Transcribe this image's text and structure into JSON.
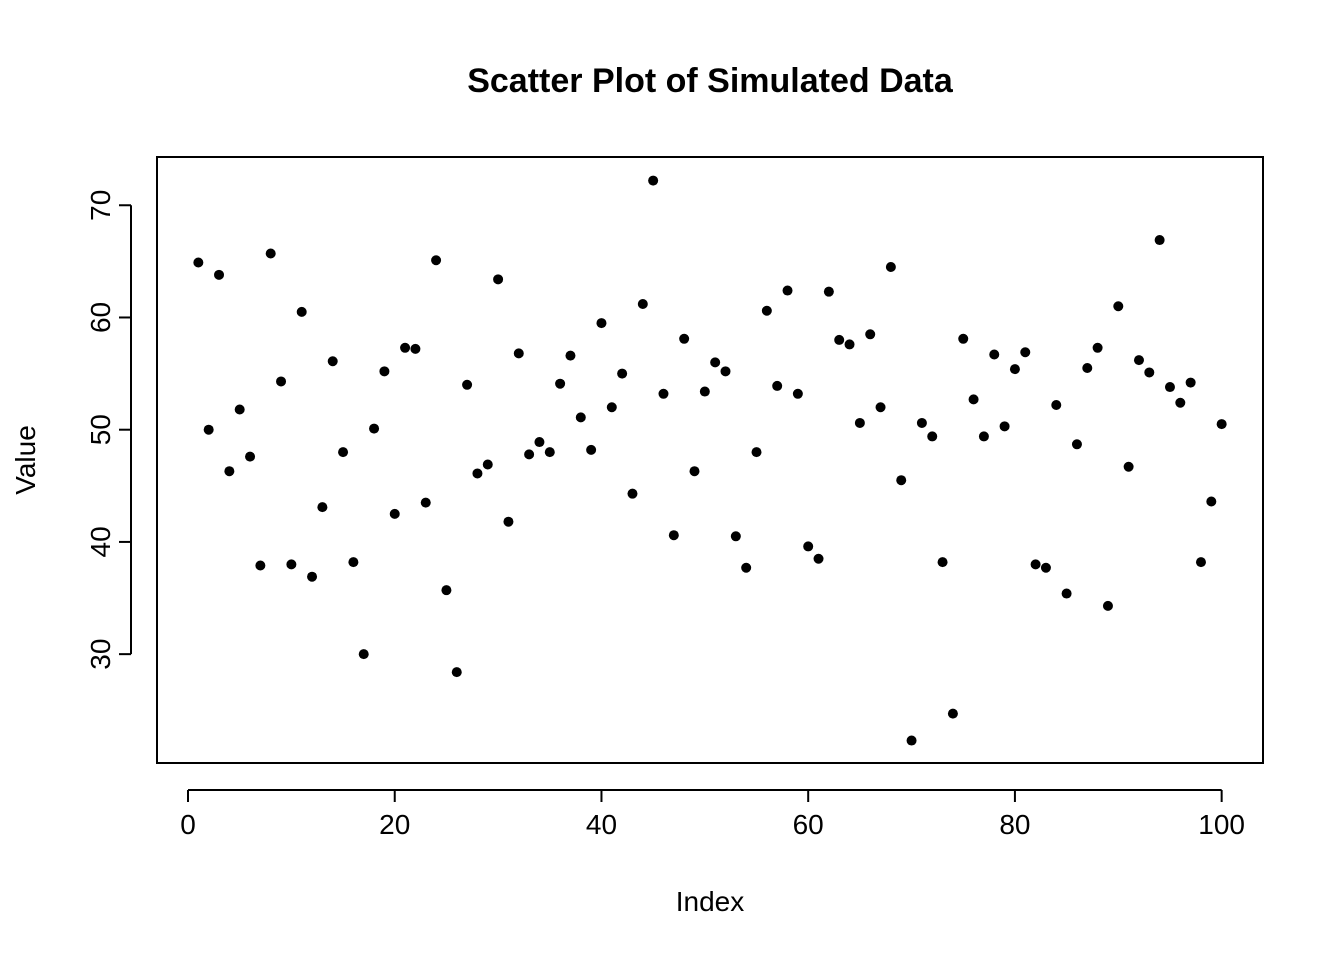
{
  "chart_data": {
    "type": "scatter",
    "title": "Scatter Plot of Simulated Data",
    "xlabel": "Index",
    "ylabel": "Value",
    "xlim": [
      -3,
      104
    ],
    "ylim": [
      20.3,
      74.3
    ],
    "xticks": [
      0,
      20,
      40,
      60,
      80,
      100
    ],
    "yticks": [
      30,
      40,
      50,
      60,
      70
    ],
    "xtick_labels": [
      "0",
      "20",
      "40",
      "60",
      "80",
      "100"
    ],
    "ytick_labels": [
      "30",
      "40",
      "50",
      "60",
      "70"
    ],
    "grid": false,
    "legend": "none",
    "point_color": "#000000",
    "x": [
      1,
      2,
      3,
      4,
      5,
      6,
      7,
      8,
      9,
      10,
      11,
      12,
      13,
      14,
      15,
      16,
      17,
      18,
      19,
      20,
      21,
      22,
      23,
      24,
      25,
      26,
      27,
      28,
      29,
      30,
      31,
      32,
      33,
      34,
      35,
      36,
      37,
      38,
      39,
      40,
      41,
      42,
      43,
      44,
      45,
      46,
      47,
      48,
      49,
      50,
      51,
      52,
      53,
      54,
      55,
      56,
      57,
      58,
      59,
      60,
      61,
      62,
      63,
      64,
      65,
      66,
      67,
      68,
      69,
      70,
      71,
      72,
      73,
      74,
      75,
      76,
      77,
      78,
      79,
      80,
      81,
      82,
      83,
      84,
      85,
      86,
      87,
      88,
      89,
      90,
      91,
      92,
      93,
      94,
      95,
      96,
      97,
      98,
      99,
      100
    ],
    "y": [
      64.9,
      50.0,
      63.8,
      46.3,
      51.8,
      47.6,
      37.9,
      65.7,
      54.3,
      38.0,
      60.5,
      36.9,
      43.1,
      56.1,
      48.0,
      38.2,
      30.0,
      50.1,
      55.2,
      42.5,
      57.3,
      57.2,
      43.5,
      65.1,
      35.7,
      28.4,
      54.0,
      46.1,
      46.9,
      63.4,
      41.8,
      56.8,
      47.8,
      48.9,
      48.0,
      54.1,
      56.6,
      51.1,
      48.2,
      59.5,
      52.0,
      55.0,
      44.3,
      61.2,
      72.2,
      53.2,
      40.6,
      58.1,
      46.3,
      53.4,
      56.0,
      55.2,
      40.5,
      37.7,
      48.0,
      60.6,
      53.9,
      62.4,
      53.2,
      39.6,
      38.5,
      62.3,
      58.0,
      57.6,
      50.6,
      58.5,
      52.0,
      64.5,
      45.5,
      22.3,
      50.6,
      49.4,
      38.2,
      24.7,
      58.1,
      52.7,
      49.4,
      56.7,
      50.3,
      55.4,
      56.9,
      38.0,
      37.7,
      52.2,
      35.4,
      48.7,
      55.5,
      57.3,
      34.3,
      61.0,
      46.7,
      56.2,
      55.1,
      66.9,
      53.8,
      52.4,
      54.2,
      38.2,
      43.6,
      50.5
    ]
  }
}
